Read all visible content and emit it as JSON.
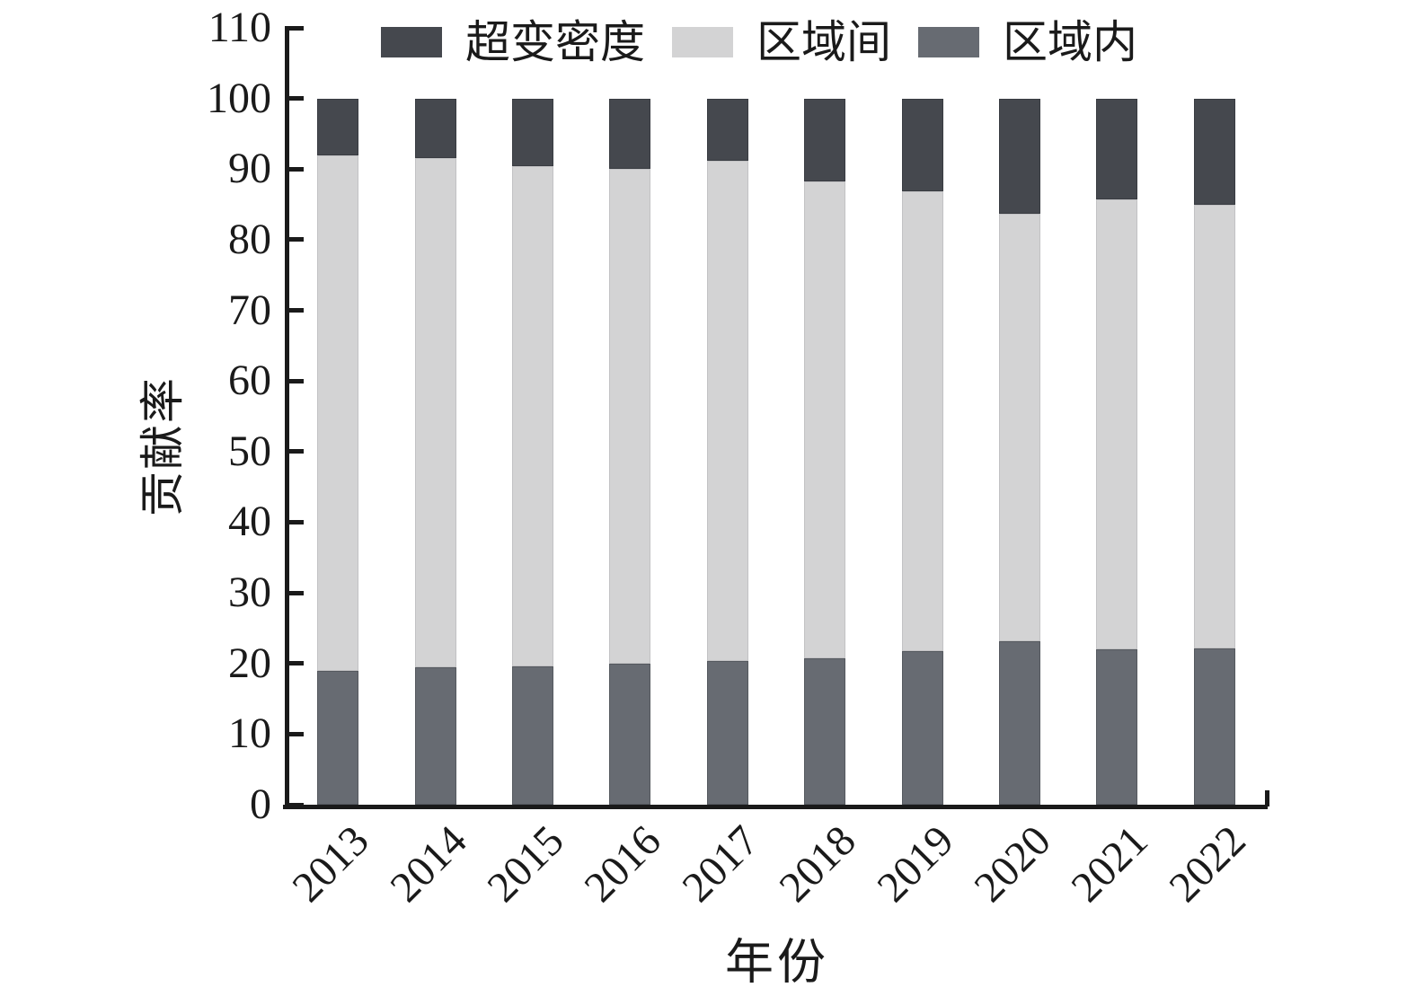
{
  "chart_data": {
    "type": "bar",
    "stacked": true,
    "title": "",
    "xlabel": "年份",
    "ylabel": "贡献率",
    "categories": [
      "2013",
      "2014",
      "2015",
      "2016",
      "2017",
      "2018",
      "2019",
      "2020",
      "2021",
      "2022"
    ],
    "series": [
      {
        "name": "区域内",
        "color": "#676b72",
        "values": [
          19.0,
          19.4,
          19.6,
          20.0,
          20.3,
          20.7,
          21.7,
          23.1,
          22.0,
          22.1
        ]
      },
      {
        "name": "区域间",
        "color": "#d3d3d4",
        "values": [
          73.0,
          72.2,
          70.8,
          70.0,
          70.9,
          67.6,
          65.2,
          60.6,
          63.7,
          62.9
        ]
      },
      {
        "name": "超变密度",
        "color": "#45484e",
        "values": [
          8.0,
          8.4,
          9.6,
          10.0,
          8.8,
          11.7,
          13.1,
          16.3,
          14.3,
          15.0
        ]
      }
    ],
    "ylim": [
      0,
      110
    ],
    "yticks": [
      0,
      10,
      20,
      30,
      40,
      50,
      60,
      70,
      80,
      90,
      100,
      110
    ],
    "grid": false,
    "legend": {
      "position": "top",
      "order": [
        "超变密度",
        "区域间",
        "区域内"
      ]
    },
    "axis_color": "#1a1a1a",
    "bar_total": 100
  }
}
